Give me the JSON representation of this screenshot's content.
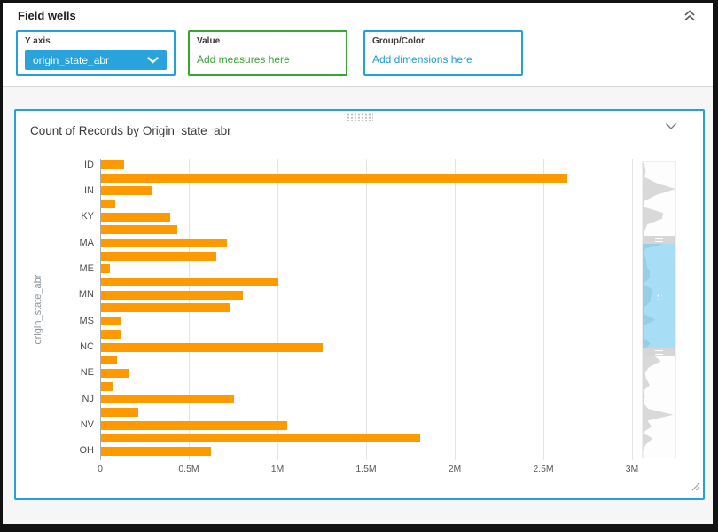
{
  "field_wells": {
    "title": "Field wells",
    "wells": [
      {
        "label": "Y axis",
        "type": "dropdown",
        "value": "origin_state_abr",
        "accent": "#23a2d9",
        "fill": "#29a3dc"
      },
      {
        "label": "Value",
        "type": "drop-target",
        "placeholder": "Add measures here",
        "accent": "#36a832"
      },
      {
        "label": "Group/Color",
        "type": "drop-target",
        "placeholder": "Add dimensions here",
        "accent": "#23a2d9",
        "text_color": "#1d9cd7"
      }
    ]
  },
  "visual": {
    "title": "Count of Records by Origin_state_abr"
  },
  "chart_data": {
    "type": "bar",
    "orientation": "horizontal",
    "title": "Count of Records by Origin_state_abr",
    "xlabel": "",
    "ylabel": "origin_state_abr",
    "unit": "millions of records",
    "grid": true,
    "bar_color": "#ff9900",
    "x_ticks": [
      "0",
      "0.5M",
      "1M",
      "1.5M",
      "2M",
      "2.5M",
      "3M"
    ],
    "xlim_millions": [
      0,
      3.1
    ],
    "bars": [
      {
        "label": "ID",
        "value": 0.13
      },
      {
        "label": "",
        "value": 2.63
      },
      {
        "label": "IN",
        "value": 0.29
      },
      {
        "label": "",
        "value": 0.08
      },
      {
        "label": "KY",
        "value": 0.39
      },
      {
        "label": "",
        "value": 0.43
      },
      {
        "label": "MA",
        "value": 0.71
      },
      {
        "label": "",
        "value": 0.65
      },
      {
        "label": "ME",
        "value": 0.05
      },
      {
        "label": "",
        "value": 1.0
      },
      {
        "label": "MN",
        "value": 0.8
      },
      {
        "label": "",
        "value": 0.73
      },
      {
        "label": "MS",
        "value": 0.11
      },
      {
        "label": "",
        "value": 0.11
      },
      {
        "label": "NC",
        "value": 1.25
      },
      {
        "label": "",
        "value": 0.09
      },
      {
        "label": "NE",
        "value": 0.16
      },
      {
        "label": "",
        "value": 0.07
      },
      {
        "label": "NJ",
        "value": 0.75
      },
      {
        "label": "",
        "value": 0.21
      },
      {
        "label": "NV",
        "value": 1.05
      },
      {
        "label": "",
        "value": 1.8
      },
      {
        "label": "OH",
        "value": 0.62
      }
    ],
    "scrollbar_minimap": {
      "window_fraction": [
        0.275,
        0.627
      ],
      "profile": [
        0.06,
        0.09,
        0.06,
        0.42,
        1.0,
        0.42,
        0.06,
        0.01,
        0.62,
        0.6,
        0.14,
        0.06,
        0.04,
        0.82,
        0.09,
        0.03,
        0.12,
        0.13,
        0.22,
        0.2,
        0.02,
        0.31,
        0.25,
        0.23,
        0.03,
        0.03,
        0.39,
        0.03,
        0.05,
        0.02,
        0.23,
        0.07,
        0.33,
        0.56,
        0.19,
        0.07,
        0.11,
        0.22,
        0.02,
        0.07,
        0.02,
        0.17,
        0.94,
        0.15,
        0.27,
        0.01,
        0.3,
        0.1,
        0.01,
        0.01
      ]
    }
  },
  "colors": {
    "panel_border": "#23a2d9",
    "bar": "#ff9900",
    "green_accent": "#36a832",
    "blue_link": "#1d9cd7"
  }
}
